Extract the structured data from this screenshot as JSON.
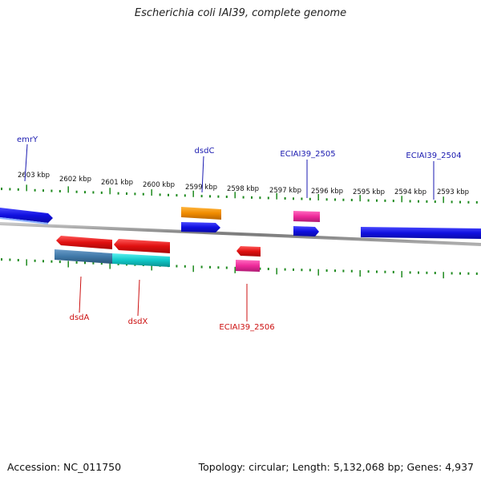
{
  "title": "Escherichia coli IAI39, complete genome",
  "footer": {
    "accession": "Accession: NC_011750",
    "summary": "Topology: circular; Length: 5,132,068 bp; Genes: 4,937"
  },
  "ticks": [
    "2603 kbp",
    "2602 kbp",
    "2601 kbp",
    "2600 kbp",
    "2599 kbp",
    "2598 kbp",
    "2597 kbp",
    "2596 kbp",
    "2595 kbp",
    "2594 kbp",
    "2593 kbp"
  ],
  "genes_top": [
    "emrY",
    "dsdC",
    "ECIAI39_2505",
    "ECIAI39_2504"
  ],
  "genes_bottom": [
    "dsdA",
    "dsdX",
    "ECIAI39_2506"
  ],
  "colors": {
    "top_label": "#1a1ab0",
    "bottom_label": "#cc1111",
    "tick": "#1e8a1e",
    "blue_gene": "#1010e0",
    "red_gene": "#e01010",
    "orange_gene": "#f08c00",
    "pink_gene": "#ee2a9a",
    "steel_gene": "#3f78a8",
    "cyan_gene": "#10c8c8",
    "backbone": "#8a8a8a"
  }
}
